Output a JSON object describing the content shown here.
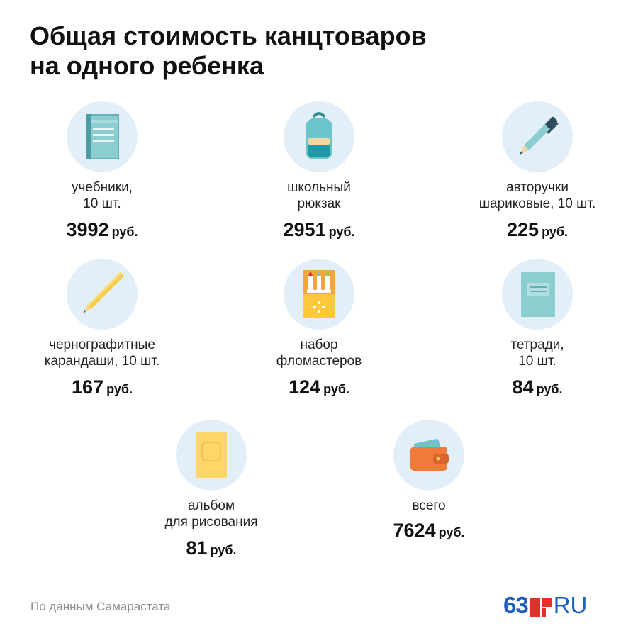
{
  "title": {
    "line1": "Общая стоимость канцтоваров",
    "line2": "на одного ребенка"
  },
  "items": [
    {
      "icon": "book-icon",
      "label_line1": "учебники,",
      "label_line2": "10 шт.",
      "price": "3992",
      "currency": "руб."
    },
    {
      "icon": "backpack-icon",
      "label_line1": "школьный",
      "label_line2": "рюкзак",
      "price": "2951",
      "currency": "руб."
    },
    {
      "icon": "pen-icon",
      "label_line1": "авторучки",
      "label_line2": "шариковые, 10 шт.",
      "price": "225",
      "currency": "руб."
    },
    {
      "icon": "pencil-icon",
      "label_line1": "чернографитные",
      "label_line2": "карандаши, 10 шт.",
      "price": "167",
      "currency": "руб."
    },
    {
      "icon": "markers-icon",
      "label_line1": "набор",
      "label_line2": "фломастеров",
      "price": "124",
      "currency": "руб."
    },
    {
      "icon": "notebook-icon",
      "label_line1": "тетради,",
      "label_line2": "10 шт.",
      "price": "84",
      "currency": "руб."
    },
    {
      "icon": "sketchbook-icon",
      "label_line1": "альбом",
      "label_line2": "для рисования",
      "price": "81",
      "currency": "руб."
    },
    {
      "icon": "wallet-icon",
      "label_line1": "всего",
      "label_line2": "",
      "price": "7624",
      "currency": "руб."
    }
  ],
  "footer": {
    "source": "По данным Самарастата",
    "logo_number": "63",
    "logo_suffix": "RU"
  },
  "colors": {
    "circle_bg": "#e3eff8",
    "teal": "#8ccdd0",
    "accent_red": "#e5302a",
    "logo_blue": "#1d5fc2"
  }
}
